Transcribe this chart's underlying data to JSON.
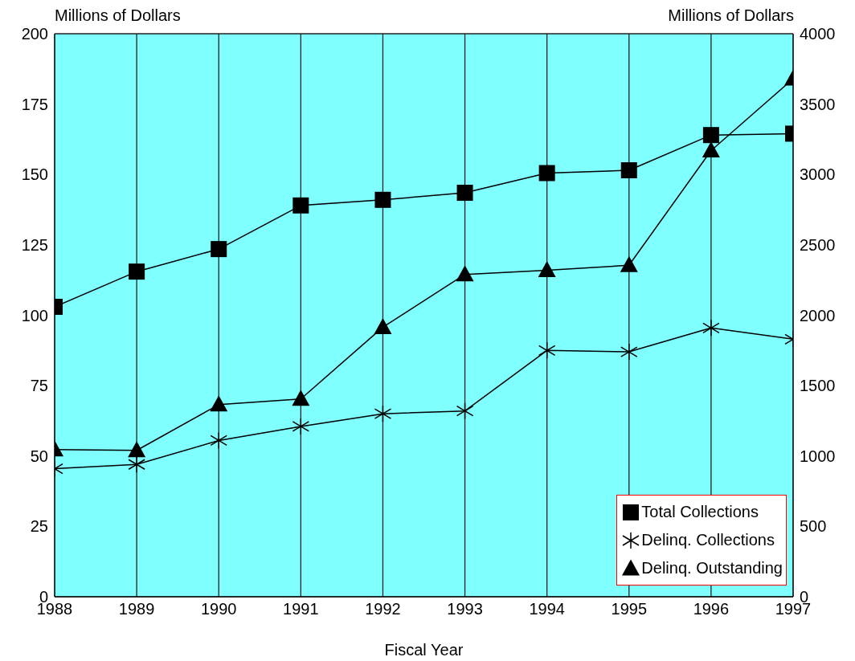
{
  "chart_data": {
    "type": "line",
    "xlabel": "Fiscal Year",
    "ylabel": "Millions of Dollars",
    "y2label": "Millions of Dollars",
    "categories": [
      "1988",
      "1989",
      "1990",
      "1991",
      "1992",
      "1993",
      "1994",
      "1995",
      "1996",
      "1997"
    ],
    "series": [
      {
        "name": "Total Collections",
        "color": "#000000",
        "marker": "square",
        "values": [
          103,
          115.5,
          123.5,
          139,
          141,
          143.5,
          150.5,
          151.5,
          164,
          164.5
        ]
      },
      {
        "name": "Delinq. Collections",
        "color": "#000000",
        "marker": "cross",
        "values": [
          45.5,
          47,
          55.5,
          60.5,
          65,
          66,
          87.5,
          87,
          95.5,
          91.5
        ]
      },
      {
        "name": "Delinq. Outstanding",
        "color": "#000000",
        "marker": "triangle",
        "axis": "y2",
        "values": [
          1045,
          1040,
          1365,
          1405,
          1915,
          2290,
          2320,
          2355,
          3170,
          3680
        ]
      }
    ],
    "ylim": [
      0,
      200
    ],
    "yticks": [
      0,
      25,
      50,
      75,
      100,
      125,
      150,
      175,
      200
    ],
    "y2lim": [
      0,
      4000
    ],
    "y2ticks": [
      0,
      500,
      1000,
      1500,
      2000,
      2500,
      3000,
      3500,
      4000
    ],
    "grid": true,
    "legend": "bottom right",
    "line_style": "solid"
  }
}
